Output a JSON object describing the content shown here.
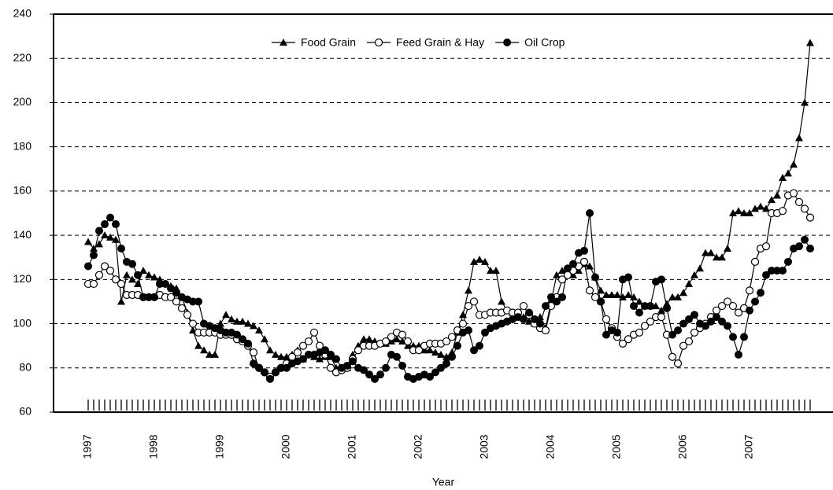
{
  "chart_data": {
    "type": "line",
    "x_label": "Year",
    "categories": [
      "1997",
      null,
      null,
      null,
      null,
      null,
      null,
      null,
      null,
      null,
      null,
      null,
      "1998",
      null,
      null,
      null,
      null,
      null,
      null,
      null,
      null,
      null,
      null,
      null,
      "1999",
      null,
      null,
      null,
      null,
      null,
      null,
      null,
      null,
      null,
      null,
      null,
      "2000",
      null,
      null,
      null,
      null,
      null,
      null,
      null,
      null,
      null,
      null,
      null,
      "2001",
      null,
      null,
      null,
      null,
      null,
      null,
      null,
      null,
      null,
      null,
      null,
      "2002",
      null,
      null,
      null,
      null,
      null,
      null,
      null,
      null,
      null,
      null,
      null,
      "2003",
      null,
      null,
      null,
      null,
      null,
      null,
      null,
      null,
      null,
      null,
      null,
      "2004",
      null,
      null,
      null,
      null,
      null,
      null,
      null,
      null,
      null,
      null,
      null,
      "2005",
      null,
      null,
      null,
      null,
      null,
      null,
      null,
      null,
      null,
      null,
      null,
      "2006",
      null,
      null,
      null,
      null,
      null,
      null,
      null,
      null,
      null,
      null,
      null,
      "2007",
      null,
      null,
      null,
      null,
      null,
      null,
      null,
      null,
      null,
      null,
      null
    ],
    "ylim": [
      60,
      240
    ],
    "yticks": [
      60,
      80,
      100,
      120,
      140,
      160,
      180,
      200,
      220,
      240
    ],
    "grid": true,
    "legend": "top",
    "series": [
      {
        "name": "Food Grain",
        "color": "#000000",
        "marker": "triangle",
        "values": [
          137,
          134,
          136,
          140,
          139,
          138,
          110,
          122,
          120,
          118,
          124,
          122,
          121,
          120,
          118,
          117,
          116,
          112,
          105,
          97,
          90,
          88,
          86,
          86,
          100,
          104,
          102,
          101,
          101,
          100,
          99,
          97,
          93,
          88,
          86,
          85,
          85,
          86,
          88,
          84,
          86,
          85,
          84,
          85,
          85,
          80,
          80,
          80,
          86,
          90,
          93,
          93,
          92,
          91,
          91,
          92,
          93,
          92,
          90,
          90,
          90,
          88,
          88,
          87,
          86,
          85,
          87,
          96,
          104,
          115,
          128,
          129,
          128,
          124,
          124,
          110,
          106,
          105,
          104,
          103,
          101,
          100,
          103,
          98,
          110,
          122,
          124,
          123,
          122,
          124,
          127,
          126,
          121,
          115,
          113,
          113,
          113,
          112,
          113,
          112,
          110,
          108,
          108,
          108,
          106,
          109,
          112,
          112,
          114,
          118,
          122,
          125,
          132,
          132,
          130,
          130,
          134,
          150,
          151,
          150,
          150,
          152,
          153,
          152,
          156,
          158,
          166,
          168,
          172,
          184,
          200,
          227
        ]
      },
      {
        "name": "Feed Grain & Hay",
        "color": "#000000",
        "marker": "open-circle",
        "values": [
          118,
          118,
          122,
          126,
          124,
          120,
          118,
          113,
          113,
          113,
          112,
          112,
          112,
          113,
          112,
          112,
          110,
          107,
          104,
          100,
          96,
          96,
          96,
          96,
          95,
          95,
          95,
          93,
          92,
          90,
          87,
          80,
          78,
          76,
          78,
          80,
          82,
          85,
          87,
          90,
          92,
          96,
          90,
          86,
          80,
          78,
          79,
          80,
          84,
          88,
          90,
          90,
          90,
          91,
          92,
          94,
          96,
          95,
          92,
          88,
          88,
          90,
          91,
          91,
          91,
          92,
          94,
          97,
          100,
          108,
          110,
          104,
          104,
          105,
          105,
          105,
          106,
          105,
          105,
          108,
          104,
          100,
          98,
          97,
          108,
          112,
          120,
          122,
          124,
          126,
          128,
          115,
          112,
          110,
          102,
          98,
          94,
          91,
          93,
          95,
          96,
          99,
          101,
          103,
          103,
          95,
          85,
          82,
          90,
          92,
          96,
          98,
          100,
          103,
          106,
          108,
          110,
          108,
          105,
          107,
          115,
          128,
          134,
          135,
          150,
          150,
          151,
          158,
          159,
          155,
          152,
          148
        ]
      },
      {
        "name": "Oil Crop",
        "color": "#000000",
        "marker": "filled-circle",
        "values": [
          126,
          131,
          142,
          145,
          148,
          145,
          134,
          128,
          127,
          122,
          112,
          112,
          112,
          118,
          118,
          116,
          114,
          112,
          111,
          110,
          110,
          100,
          99,
          98,
          97,
          96,
          96,
          95,
          93,
          91,
          82,
          80,
          78,
          75,
          78,
          80,
          80,
          82,
          83,
          84,
          86,
          86,
          87,
          88,
          86,
          84,
          80,
          81,
          83,
          80,
          79,
          77,
          75,
          77,
          80,
          86,
          85,
          81,
          76,
          75,
          76,
          77,
          76,
          78,
          80,
          82,
          85,
          90,
          96,
          97,
          88,
          90,
          96,
          98,
          99,
          100,
          101,
          102,
          103,
          102,
          105,
          102,
          100,
          108,
          112,
          110,
          112,
          125,
          127,
          132,
          133,
          150,
          121,
          110,
          95,
          97,
          96,
          120,
          121,
          108,
          105,
          108,
          108,
          119,
          120,
          107,
          95,
          97,
          100,
          102,
          104,
          100,
          99,
          101,
          103,
          101,
          99,
          94,
          86,
          94,
          106,
          110,
          114,
          122,
          124,
          124,
          124,
          128,
          134,
          135,
          138,
          134
        ]
      }
    ]
  }
}
